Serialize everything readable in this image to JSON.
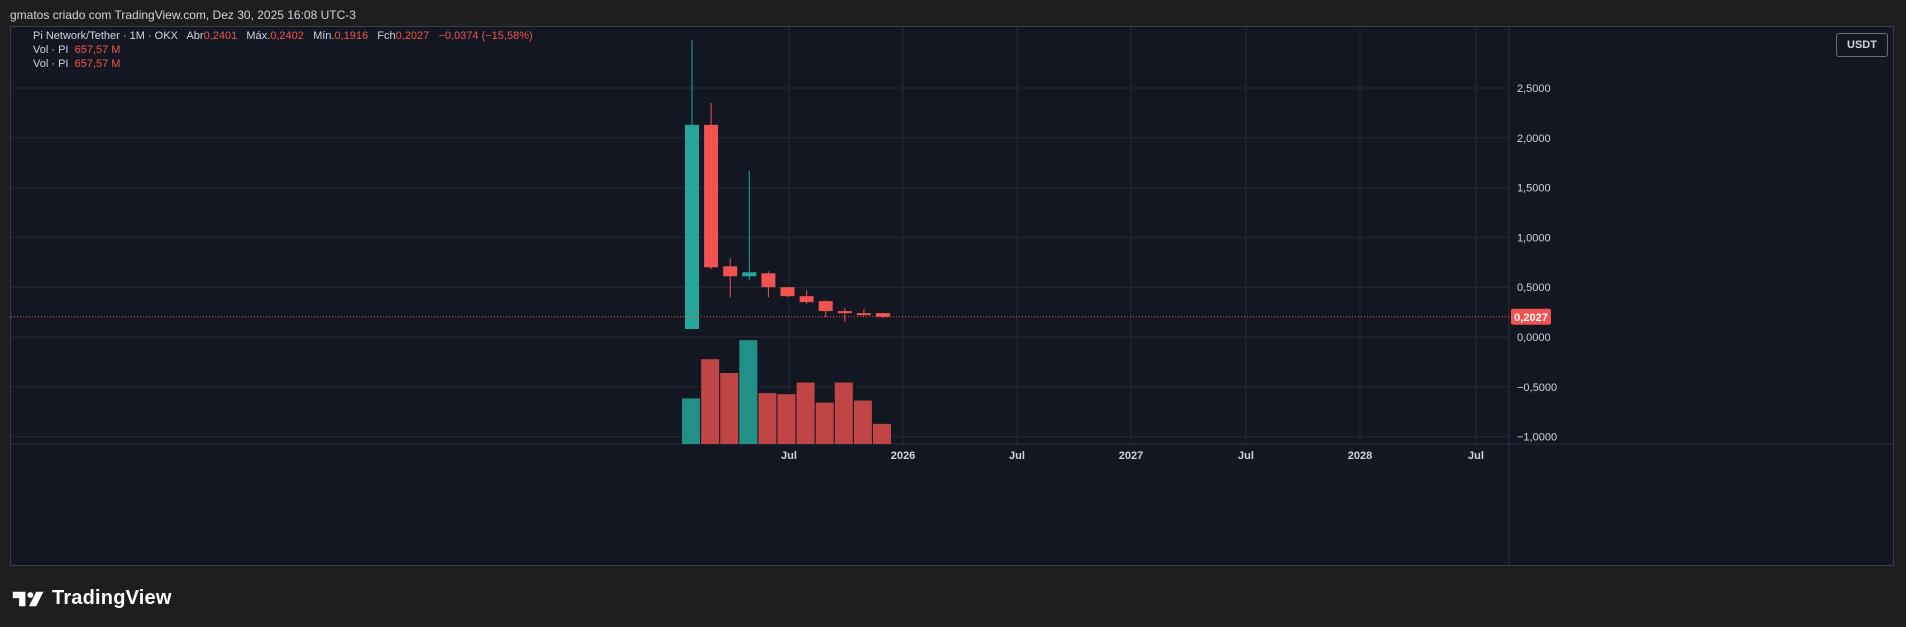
{
  "header": {
    "caption": "gmatos criado com TradingView.com, Dez 30, 2025 16:08 UTC-3"
  },
  "legend": {
    "symbol": "Pi Network/Tether · 1M · OKX",
    "open_label": "Abr",
    "open_value": "0,2401",
    "high_label": "Máx.",
    "high_value": "0,2402",
    "low_label": "Mín.",
    "low_value": "0,1916",
    "close_label": "Fch",
    "close_value": "0,2027",
    "change_value": "−0,0374 (−15,58%)",
    "vol_rows": [
      {
        "label": "Vol · PI",
        "value": "657,57 M"
      },
      {
        "label": "Vol · PI",
        "value": "657,57 M"
      }
    ]
  },
  "currency": "USDT",
  "brand": {
    "name": "TradingView"
  },
  "colors": {
    "up": "#26a69a",
    "down": "#f05350",
    "vol_up": "#239087",
    "vol_down": "#c04545",
    "background": "#131722",
    "grid": "#242833",
    "axis_text": "#d1d4dc"
  },
  "chart_data": {
    "type": "candlestick",
    "title": "Pi Network/Tether · 1M · OKX",
    "y_axis": {
      "ticks": [
        "2,5000",
        "2,0000",
        "1,5000",
        "1,0000",
        "0,5000",
        "0,0000",
        "−0,5000",
        "−1,0000"
      ],
      "tick_values": [
        2.5,
        2.0,
        1.5,
        1.0,
        0.5,
        0.0,
        -0.5,
        -1.0
      ],
      "range": [
        -1.05,
        3.0
      ]
    },
    "x_axis": {
      "labels": [
        "Jul",
        "2026",
        "Jul",
        "2027",
        "Jul",
        "2028",
        "Jul"
      ]
    },
    "last_price_label": "0,2027",
    "last_price": 0.2027,
    "candles": [
      {
        "month": "2025-02",
        "open": 0.08,
        "high": 2.98,
        "low": 0.08,
        "close": 2.13
      },
      {
        "month": "2025-03",
        "open": 2.13,
        "high": 2.35,
        "low": 0.68,
        "close": 0.7
      },
      {
        "month": "2025-04",
        "open": 0.71,
        "high": 0.79,
        "low": 0.4,
        "close": 0.61
      },
      {
        "month": "2025-05",
        "open": 0.61,
        "high": 1.67,
        "low": 0.57,
        "close": 0.65
      },
      {
        "month": "2025-06",
        "open": 0.64,
        "high": 0.66,
        "low": 0.4,
        "close": 0.5
      },
      {
        "month": "2025-07",
        "open": 0.5,
        "high": 0.5,
        "low": 0.4,
        "close": 0.41
      },
      {
        "month": "2025-08",
        "open": 0.41,
        "high": 0.47,
        "low": 0.33,
        "close": 0.35
      },
      {
        "month": "2025-09",
        "open": 0.36,
        "high": 0.37,
        "low": 0.2,
        "close": 0.26
      },
      {
        "month": "2025-10",
        "open": 0.26,
        "high": 0.29,
        "low": 0.15,
        "close": 0.24
      },
      {
        "month": "2025-11",
        "open": 0.24,
        "high": 0.28,
        "low": 0.21,
        "close": 0.22
      },
      {
        "month": "2025-12",
        "open": 0.2401,
        "high": 0.2402,
        "low": 0.1916,
        "close": 0.2027
      }
    ],
    "volume_relative": [
      0.43,
      0.8,
      0.67,
      0.98,
      0.48,
      0.47,
      0.58,
      0.39,
      0.58,
      0.41,
      0.19
    ]
  }
}
